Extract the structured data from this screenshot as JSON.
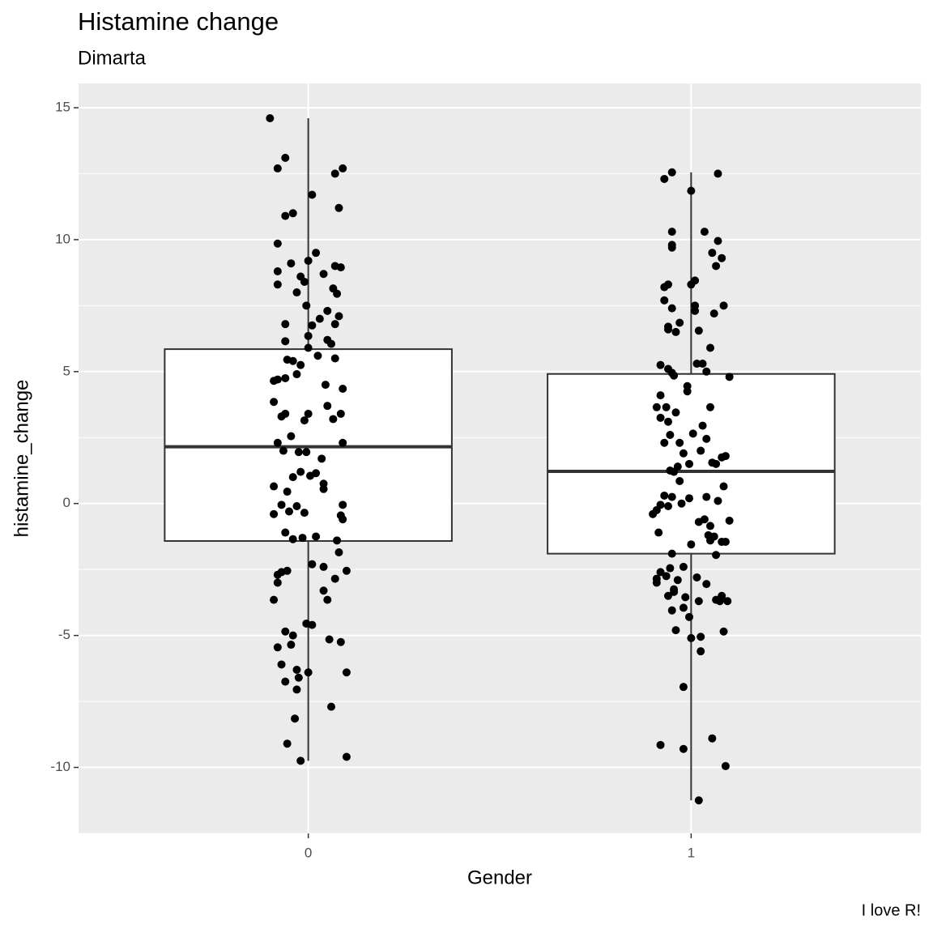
{
  "chart_data": {
    "type": "box",
    "title": "Histamine change",
    "subtitle": "Dimarta",
    "caption": "I love R!",
    "x_label": "Gender",
    "y_label": "histamine_change",
    "categories": [
      "0",
      "1"
    ],
    "xlim": [
      0.4,
      2.6
    ],
    "box_width": 0.75,
    "ylim": [
      -12.5,
      15.92
    ],
    "yticks": [
      -10,
      -5,
      0,
      5,
      10,
      15
    ],
    "yminor": [
      -12.5,
      -7.5,
      -2.5,
      2.5,
      7.5,
      12.5
    ],
    "grid": true,
    "box_color": "#ffffff",
    "point_color": "#000000",
    "groups": [
      {
        "q1": -1.42,
        "median": 2.15,
        "q3": 5.85,
        "whisker_low": -9.75,
        "whisker_high": 14.6,
        "jitter": [
          -0.1,
          -0.06,
          -0.08,
          0.07,
          0.09,
          0.01,
          -0.06,
          -0.04,
          0.08,
          -0.08,
          -0.045,
          0.02,
          0.0,
          0.07,
          0.085,
          -0.08,
          -0.02,
          -0.01,
          0.04,
          -0.08,
          -0.03,
          0.065,
          0.075,
          -0.005,
          0.05,
          0.03,
          0.08,
          -0.06,
          0.01,
          0.07,
          -0.06,
          0.0,
          0.05,
          0.06,
          -0.055,
          -0.04,
          0.0,
          0.025,
          -0.02,
          0.07,
          -0.09,
          -0.08,
          -0.06,
          -0.03,
          0.045,
          0.09,
          -0.09,
          -0.06,
          -0.07,
          -0.01,
          0.0,
          0.05,
          0.065,
          0.085,
          -0.08,
          -0.065,
          -0.045,
          -0.025,
          -0.005,
          0.035,
          0.09,
          -0.09,
          -0.055,
          -0.04,
          -0.02,
          0.005,
          0.02,
          0.04,
          0.04,
          -0.09,
          -0.07,
          -0.05,
          -0.03,
          -0.01,
          0.09,
          0.085,
          0.09,
          -0.06,
          -0.04,
          -0.015,
          0.02,
          0.075,
          -0.08,
          -0.07,
          -0.055,
          -0.08,
          0.01,
          0.04,
          0.07,
          0.08,
          0.1,
          -0.09,
          0.04,
          0.05,
          -0.06,
          -0.04,
          -0.005,
          0.01,
          -0.08,
          -0.045,
          0.055,
          0.085,
          -0.07,
          -0.03,
          -0.025,
          0.0,
          0.1,
          -0.06,
          -0.03,
          0.06,
          -0.035,
          -0.055,
          -0.02,
          0.1
        ],
        "values": [
          14.6,
          13.1,
          12.7,
          12.5,
          12.7,
          11.7,
          10.9,
          11.0,
          11.2,
          9.85,
          9.1,
          9.5,
          9.2,
          9.0,
          8.95,
          8.8,
          8.6,
          8.4,
          8.7,
          8.3,
          8.0,
          8.15,
          7.95,
          7.5,
          7.3,
          7.0,
          7.1,
          6.8,
          6.75,
          6.8,
          6.15,
          6.35,
          6.2,
          6.05,
          5.45,
          5.4,
          5.9,
          5.6,
          5.25,
          5.5,
          4.65,
          4.7,
          4.75,
          4.9,
          4.5,
          4.35,
          3.85,
          3.4,
          3.3,
          3.15,
          3.4,
          3.7,
          3.2,
          3.4,
          2.3,
          2.0,
          2.55,
          1.95,
          1.95,
          1.7,
          2.3,
          0.65,
          0.45,
          1.0,
          1.2,
          1.05,
          1.15,
          0.75,
          0.55,
          -0.4,
          -0.05,
          -0.3,
          -0.1,
          -0.35,
          -0.05,
          -0.45,
          -0.6,
          -1.1,
          -1.35,
          -1.3,
          -1.25,
          -1.4,
          -2.7,
          -2.6,
          -2.55,
          -3.0,
          -2.3,
          -2.4,
          -2.85,
          -1.85,
          -2.55,
          -3.65,
          -3.3,
          -3.65,
          -4.85,
          -5.0,
          -4.55,
          -4.6,
          -5.45,
          -5.35,
          -5.15,
          -5.25,
          -6.1,
          -6.3,
          -6.6,
          -6.4,
          -6.4,
          -6.75,
          -7.05,
          -7.7,
          -8.15,
          -9.1,
          -9.75,
          -9.6
        ]
      },
      {
        "q1": -1.9,
        "median": 1.22,
        "q3": 4.91,
        "whisker_low": -11.25,
        "whisker_high": 12.55,
        "jitter": [
          -0.07,
          -0.05,
          0.07,
          0.0,
          -0.05,
          0.035,
          -0.05,
          -0.05,
          0.07,
          0.055,
          0.065,
          0.08,
          -0.07,
          -0.06,
          0.0,
          0.01,
          -0.07,
          -0.05,
          0.01,
          0.01,
          0.06,
          0.085,
          -0.03,
          -0.06,
          -0.06,
          -0.04,
          0.02,
          0.05,
          -0.08,
          -0.06,
          -0.05,
          -0.045,
          0.015,
          0.03,
          0.04,
          0.1,
          -0.09,
          -0.08,
          -0.08,
          -0.065,
          -0.06,
          -0.04,
          -0.01,
          -0.01,
          0.05,
          -0.07,
          -0.055,
          -0.03,
          -0.02,
          0.005,
          0.025,
          0.03,
          0.04,
          -0.055,
          -0.045,
          -0.035,
          -0.005,
          0.055,
          0.065,
          0.08,
          0.09,
          -0.03,
          -0.07,
          -0.05,
          -0.005,
          0.04,
          0.07,
          0.085,
          -0.1,
          -0.09,
          -0.08,
          -0.06,
          -0.025,
          0.02,
          0.035,
          0.05,
          0.1,
          -0.085,
          0.0,
          0.045,
          0.05,
          0.06,
          0.08,
          0.09,
          -0.05,
          -0.09,
          -0.08,
          -0.065,
          -0.055,
          -0.02,
          -0.035,
          0.015,
          -0.09,
          0.04,
          0.065,
          -0.06,
          -0.045,
          -0.045,
          -0.015,
          0.02,
          0.065,
          0.08,
          0.095,
          -0.05,
          -0.02,
          -0.005,
          0.075,
          -0.04,
          0.0,
          0.025,
          0.085,
          0.025,
          -0.02,
          -0.08,
          -0.02,
          0.055,
          0.09,
          0.02
        ],
        "values": [
          12.3,
          12.55,
          12.5,
          11.85,
          10.3,
          10.3,
          9.8,
          9.7,
          9.95,
          9.5,
          9.0,
          9.3,
          8.2,
          8.3,
          8.3,
          8.45,
          7.7,
          7.4,
          7.5,
          7.3,
          7.2,
          7.5,
          6.85,
          6.6,
          6.7,
          6.5,
          6.55,
          5.9,
          5.25,
          5.1,
          4.95,
          4.85,
          5.3,
          5.3,
          5.0,
          4.8,
          3.65,
          4.1,
          3.25,
          3.65,
          3.1,
          3.45,
          4.45,
          4.25,
          3.65,
          2.3,
          2.6,
          2.3,
          1.9,
          2.65,
          2.0,
          2.95,
          2.45,
          1.25,
          1.2,
          1.4,
          1.5,
          1.55,
          1.5,
          1.75,
          1.8,
          0.85,
          0.3,
          0.25,
          0.2,
          0.25,
          0.1,
          0.65,
          -0.4,
          -0.25,
          -0.05,
          -0.1,
          0.0,
          -0.7,
          -0.6,
          -0.85,
          -0.65,
          -1.1,
          -1.55,
          -1.2,
          -1.4,
          -1.25,
          -1.45,
          -1.45,
          -1.9,
          -2.85,
          -2.6,
          -2.75,
          -2.45,
          -2.4,
          -2.9,
          -2.8,
          -3.0,
          -3.05,
          -1.95,
          -3.5,
          -3.35,
          -3.25,
          -3.55,
          -3.7,
          -3.65,
          -3.5,
          -3.7,
          -4.05,
          -3.95,
          -4.3,
          -3.7,
          -4.8,
          -5.1,
          -5.05,
          -4.85,
          -5.6,
          -6.95,
          -9.15,
          -9.3,
          -8.9,
          -9.95,
          -11.25
        ]
      }
    ]
  }
}
